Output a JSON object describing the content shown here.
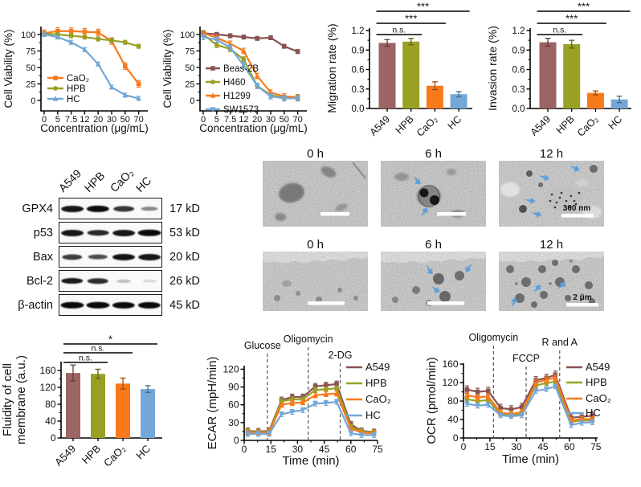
{
  "figure": {
    "background": "#ffffff"
  },
  "palette": {
    "a549_maroon": "#8A5250",
    "hpb_olive": "#99A024",
    "cao2_orange": "#F87A1D",
    "hc_blue": "#74A7D8",
    "bar_maroon": "#9C6462",
    "arrow_blue": "#5F9FD9"
  },
  "chart_data": [
    {
      "id": "viability1",
      "type": "line",
      "ylabel": "Cell Viability (%)",
      "xlabel": "Concentration (μg/mL)",
      "categories": [
        "0",
        "5",
        "7.5",
        "12",
        "20",
        "30",
        "50",
        "70"
      ],
      "yticks": [
        0,
        25,
        50,
        75,
        100
      ],
      "ydec": 0,
      "series": [
        {
          "name": "CaO₂",
          "color": "#F87A1D",
          "marker": "square",
          "err": 5,
          "values": [
            102,
            105,
            105,
            104,
            103,
            90,
            52,
            25
          ]
        },
        {
          "name": "HPB",
          "color": "#99A024",
          "marker": "circle",
          "err": 3,
          "values": [
            101,
            100,
            98,
            96,
            93,
            91,
            88,
            82
          ]
        },
        {
          "name": "HC",
          "color": "#74A7D8",
          "marker": "triangle",
          "err": 3,
          "values": [
            100,
            96,
            88,
            77,
            55,
            20,
            8,
            3
          ]
        }
      ]
    },
    {
      "id": "viability2",
      "type": "line",
      "ylabel": "Cell Viability (%)",
      "xlabel": "Concentration (μg/mL)",
      "categories": [
        "0",
        "5",
        "7.5",
        "12",
        "20",
        "30",
        "50",
        "70"
      ],
      "yticks": [
        0,
        25,
        50,
        75,
        100
      ],
      "ydec": 0,
      "series": [
        {
          "name": "Beas-2B",
          "color": "#8A5250",
          "marker": "square",
          "err": 3,
          "values": [
            102,
            100,
            98,
            96,
            94,
            95,
            82,
            74
          ]
        },
        {
          "name": "H460",
          "color": "#99A024",
          "marker": "circle",
          "err": 4,
          "values": [
            100,
            84,
            78,
            62,
            22,
            8,
            4,
            4
          ]
        },
        {
          "name": "H1299",
          "color": "#F87A1D",
          "marker": "triangle",
          "err": 4,
          "values": [
            102,
            95,
            86,
            75,
            37,
            12,
            6,
            5
          ]
        },
        {
          "name": "SW1573",
          "color": "#74A7D8",
          "marker": "tridown",
          "err": 4,
          "values": [
            96,
            92,
            80,
            53,
            22,
            6,
            3,
            3
          ]
        }
      ]
    },
    {
      "id": "migration",
      "type": "bar",
      "ylabel": "Migration rate (%)",
      "categories": [
        "A549",
        "HPB",
        "CaO₂",
        "HC"
      ],
      "colors": [
        "#9C6462",
        "#99A024",
        "#F87A1D",
        "#74A7D8"
      ],
      "values": [
        1.01,
        1.03,
        0.35,
        0.22
      ],
      "errors": [
        0.05,
        0.05,
        0.06,
        0.04
      ],
      "yticks": [
        0,
        0.3,
        0.6,
        0.9,
        1.2
      ],
      "ydec": 1,
      "sig": [
        {
          "a": 0,
          "b": 1,
          "label": "n.s."
        },
        {
          "a": 0,
          "b": 2,
          "label": "***"
        },
        {
          "a": 0,
          "b": 3,
          "label": "***"
        }
      ]
    },
    {
      "id": "invasion",
      "type": "bar",
      "ylabel": "Invasion rate (%)",
      "categories": [
        "A549",
        "HPB",
        "CaO₂",
        "HC"
      ],
      "colors": [
        "#9C6462",
        "#99A024",
        "#F87A1D",
        "#74A7D8"
      ],
      "values": [
        1.02,
        0.99,
        0.24,
        0.14
      ],
      "errors": [
        0.06,
        0.06,
        0.03,
        0.05
      ],
      "yticks": [
        0,
        0.3,
        0.6,
        0.9,
        1.2
      ],
      "ydec": 1,
      "sig": [
        {
          "a": 0,
          "b": 1,
          "label": "n.s."
        },
        {
          "a": 0,
          "b": 2,
          "label": "***"
        },
        {
          "a": 0,
          "b": 3,
          "label": "***"
        }
      ]
    },
    {
      "id": "fluidity",
      "type": "bar",
      "ylabel_lines": [
        "Fluidity of cell",
        "membrane (a.u.)"
      ],
      "categories": [
        "A549",
        "HPB",
        "CaO₂",
        "HC"
      ],
      "colors": [
        "#9C6462",
        "#99A024",
        "#F87A1D",
        "#74A7D8"
      ],
      "values": [
        154,
        152,
        129,
        116
      ],
      "errors": [
        19,
        11,
        13,
        8
      ],
      "yticks": [
        0,
        40,
        80,
        120,
        160
      ],
      "ydec": 0,
      "sig": [
        {
          "a": 0,
          "b": 1,
          "label": "n.s."
        },
        {
          "a": 0,
          "b": 2,
          "label": "n.s."
        },
        {
          "a": 0,
          "b": 3,
          "label": "*"
        }
      ]
    },
    {
      "id": "ecar",
      "type": "line",
      "ylabel": "ECAR (mpH/min)",
      "xlabel": "Time (min)",
      "x": [
        2,
        8,
        14,
        21,
        27,
        33,
        40,
        46,
        52,
        60,
        66,
        73
      ],
      "xticks": [
        0,
        15,
        30,
        45,
        60,
        75
      ],
      "yticks": [
        0,
        30,
        60,
        90,
        120
      ],
      "ydec": 0,
      "vlines": [
        {
          "x": 13,
          "label": "Glucose"
        },
        {
          "x": 36,
          "label": "Oligomycin"
        },
        {
          "x": 54,
          "label": "2-DG"
        }
      ],
      "series": [
        {
          "name": "A549",
          "color": "#8A5250",
          "marker": "square",
          "err": 5,
          "values": [
            16,
            15,
            16,
            68,
            73,
            73,
            91,
            93,
            95,
            27,
            16,
            14
          ]
        },
        {
          "name": "HPB",
          "color": "#99A024",
          "marker": "circle",
          "err": 4,
          "values": [
            15,
            14,
            15,
            66,
            69,
            69,
            85,
            86,
            88,
            23,
            15,
            13
          ]
        },
        {
          "name": "CaO₂",
          "color": "#F87A1D",
          "marker": "triangle",
          "err": 4,
          "values": [
            13,
            13,
            13,
            60,
            63,
            64,
            76,
            78,
            79,
            20,
            13,
            12
          ]
        },
        {
          "name": "HC",
          "color": "#74A7D8",
          "marker": "tridown",
          "err": 4,
          "values": [
            11,
            11,
            11,
            44,
            48,
            51,
            62,
            63,
            65,
            12,
            9,
            9
          ]
        }
      ]
    },
    {
      "id": "ocr",
      "type": "line",
      "ylabel": "OCR (pmol/min)",
      "xlabel": "Time (min)",
      "x": [
        2,
        8,
        14,
        21,
        27,
        33,
        41,
        47,
        52,
        61,
        67,
        73
      ],
      "xticks": [
        0,
        15,
        30,
        45,
        60,
        75
      ],
      "yticks": [
        0,
        40,
        80,
        120,
        160
      ],
      "ydec": 0,
      "vlines": [
        {
          "x": 17,
          "label": "Oligomycin"
        },
        {
          "x": 35.5,
          "label": "FCCP"
        },
        {
          "x": 54.5,
          "label": "R and A"
        }
      ],
      "series": [
        {
          "name": "A549",
          "color": "#8A5250",
          "marker": "square",
          "err": 8,
          "values": [
            105,
            100,
            102,
            65,
            62,
            67,
            125,
            130,
            137,
            44,
            46,
            48
          ]
        },
        {
          "name": "HPB",
          "color": "#99A024",
          "marker": "circle",
          "err": 5,
          "values": [
            84,
            80,
            82,
            52,
            50,
            53,
            114,
            119,
            122,
            35,
            38,
            38
          ]
        },
        {
          "name": "CaO₂",
          "color": "#F87A1D",
          "marker": "triangle",
          "err": 6,
          "values": [
            93,
            88,
            90,
            55,
            52,
            56,
            120,
            126,
            131,
            38,
            41,
            41
          ]
        },
        {
          "name": "HC",
          "color": "#74A7D8",
          "marker": "tridown",
          "err": 5,
          "values": [
            74,
            70,
            72,
            49,
            47,
            49,
            102,
            106,
            112,
            28,
            33,
            34
          ]
        }
      ]
    }
  ],
  "western_blot": {
    "lanes": [
      "A549",
      "HPB",
      "CaO₂",
      "HC"
    ],
    "rows": [
      {
        "protein": "GPX4",
        "size": "17 kD",
        "bands": [
          0.9,
          0.95,
          0.75,
          0.38
        ]
      },
      {
        "protein": "p53",
        "size": "53 kD",
        "bands": [
          0.9,
          0.82,
          0.9,
          1.0
        ]
      },
      {
        "protein": "Bax",
        "size": "20 kD",
        "bands": [
          0.72,
          0.65,
          0.92,
          0.9
        ]
      },
      {
        "protein": "Bcl-2",
        "size": "26 kD",
        "bands": [
          0.88,
          0.8,
          0.14,
          0.04
        ]
      },
      {
        "protein": "β-actin",
        "size": "45 kD",
        "bands": [
          1,
          1,
          0.95,
          0.95
        ]
      }
    ]
  },
  "tem": {
    "row1": {
      "timepoints": [
        "0 h",
        "6 h",
        "12 h"
      ],
      "scale": "300 nm"
    },
    "row2": {
      "timepoints": [
        "0 h",
        "6 h",
        "12 h"
      ],
      "scale": "2 μm"
    }
  }
}
